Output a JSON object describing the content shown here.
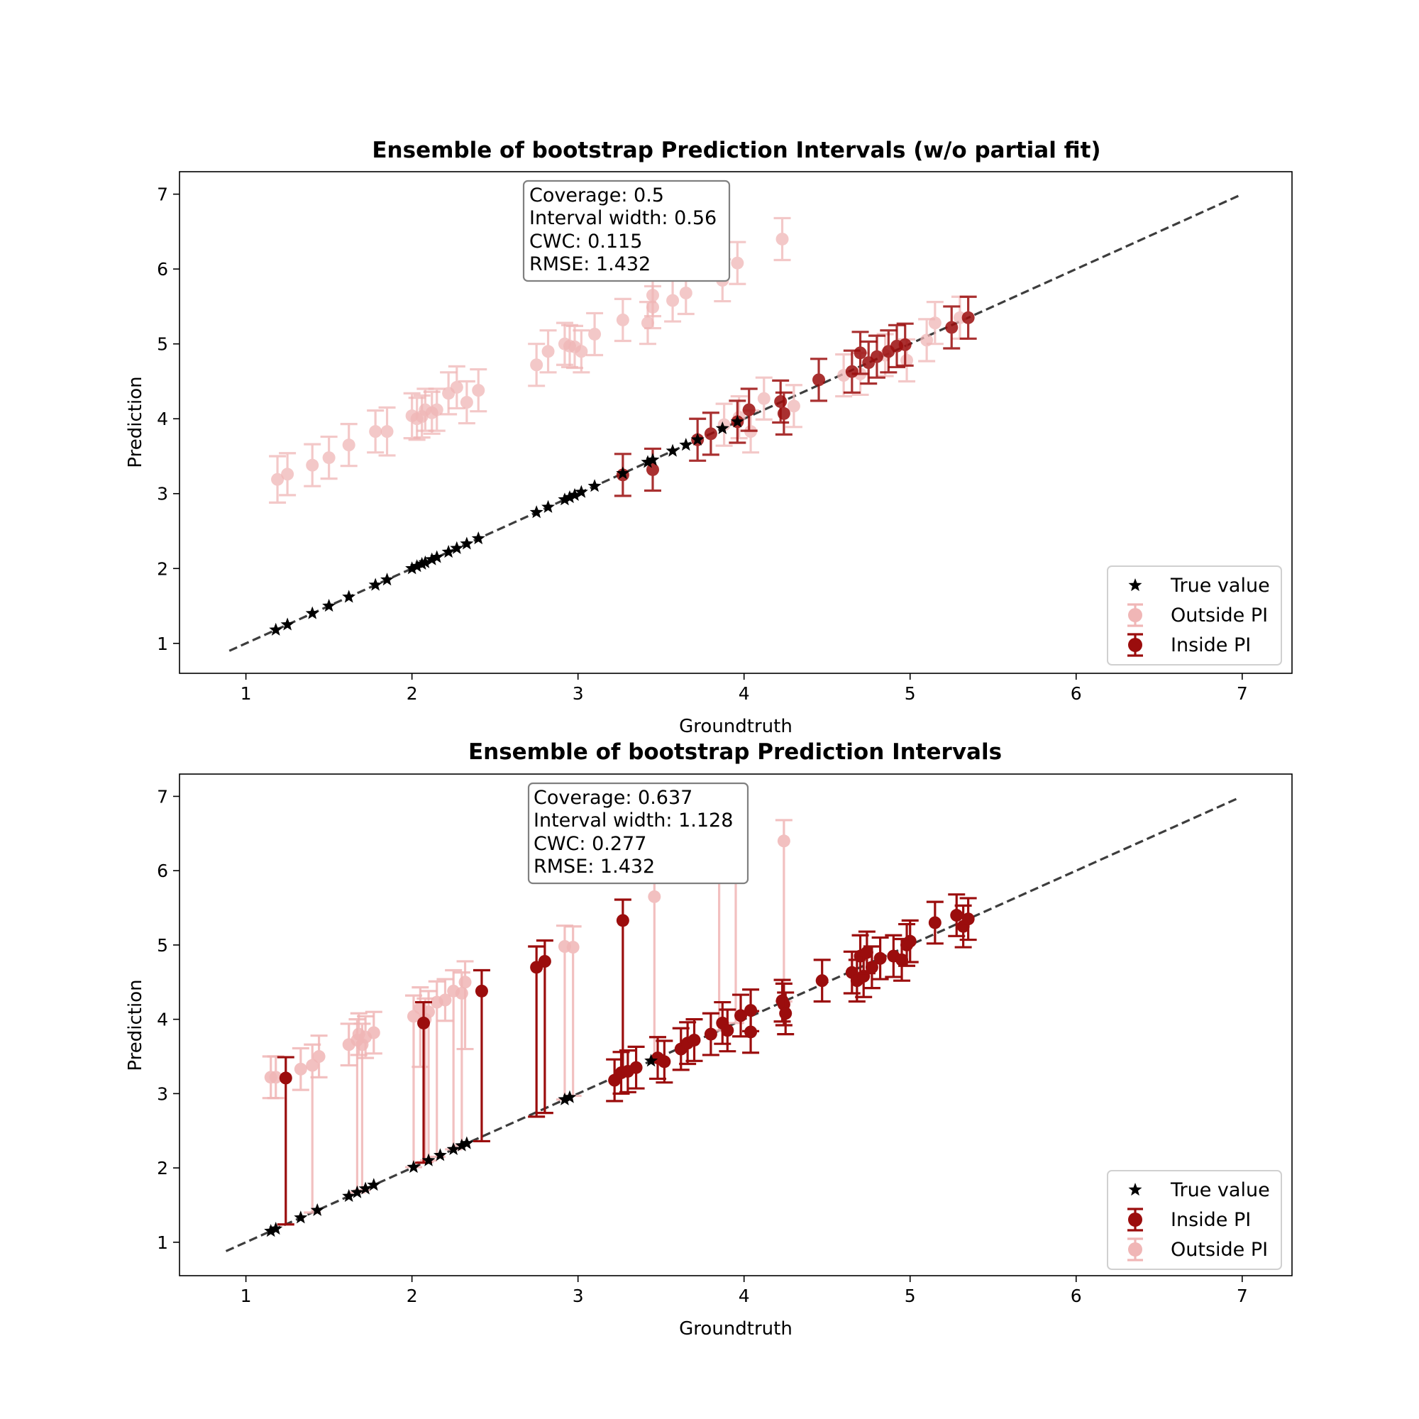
{
  "chart_data": [
    {
      "type": "scatter",
      "title": "Ensemble of bootstrap Prediction Intervals (w/o partial fit)",
      "xlabel": "Groundtruth",
      "ylabel": "Prediction",
      "xlim": [
        0.6,
        7.3
      ],
      "ylim": [
        0.6,
        7.3
      ],
      "xticks": [
        "1",
        "2",
        "3",
        "4",
        "5",
        "6",
        "7"
      ],
      "yticks": [
        "1",
        "2",
        "3",
        "4",
        "5",
        "6",
        "7"
      ],
      "grid": false,
      "legend_position": "bottom-right",
      "legend": [
        "True value",
        "Outside PI",
        "Inside PI"
      ],
      "metrics": [
        "Coverage: 0.5",
        "Interval width: 0.56",
        "CWC: 0.115",
        "RMSE: 1.432"
      ],
      "reference_line": {
        "x": [
          0.9,
          7.0
        ],
        "y": [
          0.9,
          7.0
        ]
      },
      "true_value": {
        "x": [
          1.18,
          1.25,
          1.4,
          1.5,
          1.62,
          1.78,
          1.85,
          2.0,
          2.03,
          2.06,
          2.08,
          2.12,
          2.15,
          2.22,
          2.27,
          2.33,
          2.4,
          2.75,
          2.82,
          2.92,
          2.95,
          2.98,
          3.02,
          3.1,
          3.27,
          3.42,
          3.45,
          3.57,
          3.65,
          3.72,
          3.87,
          3.96
        ],
        "y": [
          1.18,
          1.25,
          1.4,
          1.5,
          1.62,
          1.78,
          1.85,
          2.0,
          2.03,
          2.06,
          2.08,
          2.12,
          2.15,
          2.22,
          2.27,
          2.33,
          2.4,
          2.75,
          2.82,
          2.92,
          2.95,
          2.98,
          3.02,
          3.1,
          3.27,
          3.42,
          3.45,
          3.57,
          3.65,
          3.72,
          3.87,
          3.96
        ]
      },
      "outside_pi": [
        {
          "x": 1.19,
          "y": 3.19,
          "lo": 2.88,
          "hi": 3.5
        },
        {
          "x": 1.25,
          "y": 3.26,
          "lo": 2.98,
          "hi": 3.54
        },
        {
          "x": 1.4,
          "y": 3.38,
          "lo": 3.1,
          "hi": 3.66
        },
        {
          "x": 1.5,
          "y": 3.48,
          "lo": 3.2,
          "hi": 3.76
        },
        {
          "x": 1.62,
          "y": 3.65,
          "lo": 3.37,
          "hi": 3.93
        },
        {
          "x": 1.78,
          "y": 3.83,
          "lo": 3.55,
          "hi": 4.11
        },
        {
          "x": 1.85,
          "y": 3.83,
          "lo": 3.51,
          "hi": 4.15
        },
        {
          "x": 2.0,
          "y": 4.04,
          "lo": 3.74,
          "hi": 4.34
        },
        {
          "x": 2.03,
          "y": 4.0,
          "lo": 3.72,
          "hi": 4.28
        },
        {
          "x": 2.06,
          "y": 4.03,
          "lo": 3.75,
          "hi": 4.31
        },
        {
          "x": 2.08,
          "y": 4.12,
          "lo": 3.84,
          "hi": 4.4
        },
        {
          "x": 2.12,
          "y": 4.08,
          "lo": 3.8,
          "hi": 4.36
        },
        {
          "x": 2.15,
          "y": 4.12,
          "lo": 3.84,
          "hi": 4.4
        },
        {
          "x": 2.22,
          "y": 4.34,
          "lo": 4.06,
          "hi": 4.62
        },
        {
          "x": 2.27,
          "y": 4.42,
          "lo": 4.14,
          "hi": 4.7
        },
        {
          "x": 2.33,
          "y": 4.22,
          "lo": 3.94,
          "hi": 4.5
        },
        {
          "x": 2.4,
          "y": 4.38,
          "lo": 4.1,
          "hi": 4.66
        },
        {
          "x": 2.75,
          "y": 4.72,
          "lo": 4.44,
          "hi": 5.0
        },
        {
          "x": 2.82,
          "y": 4.9,
          "lo": 4.62,
          "hi": 5.18
        },
        {
          "x": 2.92,
          "y": 5.0,
          "lo": 4.72,
          "hi": 5.28
        },
        {
          "x": 2.95,
          "y": 4.97,
          "lo": 4.69,
          "hi": 5.25
        },
        {
          "x": 2.98,
          "y": 4.96,
          "lo": 4.68,
          "hi": 5.24
        },
        {
          "x": 3.02,
          "y": 4.9,
          "lo": 4.62,
          "hi": 5.18
        },
        {
          "x": 3.1,
          "y": 5.13,
          "lo": 4.85,
          "hi": 5.41
        },
        {
          "x": 3.27,
          "y": 5.32,
          "lo": 5.04,
          "hi": 5.6
        },
        {
          "x": 3.42,
          "y": 5.28,
          "lo": 5.0,
          "hi": 5.56
        },
        {
          "x": 3.45,
          "y": 5.49,
          "lo": 5.21,
          "hi": 5.77
        },
        {
          "x": 3.45,
          "y": 5.65,
          "lo": 5.37,
          "hi": 5.93
        },
        {
          "x": 3.57,
          "y": 5.58,
          "lo": 5.3,
          "hi": 5.86
        },
        {
          "x": 3.65,
          "y": 5.68,
          "lo": 5.4,
          "hi": 5.96
        },
        {
          "x": 3.87,
          "y": 5.85,
          "lo": 5.57,
          "hi": 6.13
        },
        {
          "x": 3.96,
          "y": 6.08,
          "lo": 5.8,
          "hi": 6.36
        },
        {
          "x": 4.23,
          "y": 6.4,
          "lo": 6.12,
          "hi": 6.68
        },
        {
          "x": 3.88,
          "y": 3.92,
          "lo": 3.64,
          "hi": 4.2
        },
        {
          "x": 3.97,
          "y": 4.02,
          "lo": 3.74,
          "hi": 4.3
        },
        {
          "x": 4.04,
          "y": 3.83,
          "lo": 3.55,
          "hi": 4.11
        },
        {
          "x": 4.12,
          "y": 4.27,
          "lo": 3.99,
          "hi": 4.55
        },
        {
          "x": 4.3,
          "y": 4.17,
          "lo": 3.89,
          "hi": 4.45
        },
        {
          "x": 4.6,
          "y": 4.58,
          "lo": 4.3,
          "hi": 4.86
        },
        {
          "x": 4.7,
          "y": 4.6,
          "lo": 4.32,
          "hi": 4.88
        },
        {
          "x": 4.85,
          "y": 4.85,
          "lo": 4.57,
          "hi": 5.13
        },
        {
          "x": 4.98,
          "y": 4.78,
          "lo": 4.5,
          "hi": 5.06
        },
        {
          "x": 5.1,
          "y": 5.05,
          "lo": 4.77,
          "hi": 5.33
        },
        {
          "x": 5.15,
          "y": 5.28,
          "lo": 5.0,
          "hi": 5.56
        },
        {
          "x": 5.3,
          "y": 5.35,
          "lo": 5.07,
          "hi": 5.63
        }
      ],
      "inside_pi": [
        {
          "x": 3.27,
          "y": 3.25,
          "lo": 2.97,
          "hi": 3.53
        },
        {
          "x": 3.45,
          "y": 3.32,
          "lo": 3.04,
          "hi": 3.6
        },
        {
          "x": 3.72,
          "y": 3.72,
          "lo": 3.44,
          "hi": 4.0
        },
        {
          "x": 3.8,
          "y": 3.8,
          "lo": 3.52,
          "hi": 4.08
        },
        {
          "x": 3.96,
          "y": 3.96,
          "lo": 3.68,
          "hi": 4.24
        },
        {
          "x": 4.03,
          "y": 4.12,
          "lo": 3.84,
          "hi": 4.4
        },
        {
          "x": 4.22,
          "y": 4.23,
          "lo": 3.95,
          "hi": 4.51
        },
        {
          "x": 4.24,
          "y": 4.07,
          "lo": 3.79,
          "hi": 4.35
        },
        {
          "x": 4.45,
          "y": 4.52,
          "lo": 4.24,
          "hi": 4.8
        },
        {
          "x": 4.65,
          "y": 4.63,
          "lo": 4.35,
          "hi": 4.91
        },
        {
          "x": 4.7,
          "y": 4.88,
          "lo": 4.6,
          "hi": 5.16
        },
        {
          "x": 4.75,
          "y": 4.75,
          "lo": 4.47,
          "hi": 5.03
        },
        {
          "x": 4.8,
          "y": 4.83,
          "lo": 4.55,
          "hi": 5.11
        },
        {
          "x": 4.87,
          "y": 4.9,
          "lo": 4.62,
          "hi": 5.18
        },
        {
          "x": 4.92,
          "y": 4.97,
          "lo": 4.69,
          "hi": 5.25
        },
        {
          "x": 4.97,
          "y": 4.99,
          "lo": 4.71,
          "hi": 5.27
        },
        {
          "x": 5.25,
          "y": 5.22,
          "lo": 4.94,
          "hi": 5.5
        },
        {
          "x": 5.35,
          "y": 5.35,
          "lo": 5.07,
          "hi": 5.63
        }
      ]
    },
    {
      "type": "scatter",
      "title": "Ensemble of bootstrap Prediction Intervals",
      "xlabel": "Groundtruth",
      "ylabel": "Prediction",
      "xlim": [
        0.6,
        7.3
      ],
      "ylim": [
        0.55,
        7.3
      ],
      "xticks": [
        "1",
        "2",
        "3",
        "4",
        "5",
        "6",
        "7"
      ],
      "yticks": [
        "1",
        "2",
        "3",
        "4",
        "5",
        "6",
        "7"
      ],
      "grid": false,
      "legend_position": "bottom-right",
      "legend": [
        "True value",
        "Inside PI",
        "Outside PI"
      ],
      "metrics": [
        "Coverage: 0.637",
        "Interval width: 1.128",
        "CWC: 0.277",
        "RMSE: 1.432"
      ],
      "reference_line": {
        "x": [
          0.88,
          6.97
        ],
        "y": [
          0.88,
          6.97
        ]
      },
      "true_value": {
        "x": [
          1.15,
          1.18,
          1.33,
          1.43,
          1.62,
          1.67,
          1.72,
          1.77,
          2.01,
          2.1,
          2.17,
          2.25,
          2.3,
          2.33,
          2.92,
          2.95,
          3.44
        ],
        "y": [
          1.15,
          1.18,
          1.33,
          1.43,
          1.62,
          1.67,
          1.72,
          1.77,
          2.01,
          2.1,
          2.17,
          2.25,
          2.3,
          2.33,
          2.92,
          2.95,
          3.44
        ]
      },
      "outside_pi": [
        {
          "x": 1.15,
          "y": 3.22,
          "lo": 2.94,
          "hi": 3.5
        },
        {
          "x": 1.18,
          "y": 3.22,
          "lo": 2.94,
          "hi": 3.5
        },
        {
          "x": 1.33,
          "y": 3.33,
          "lo": 3.05,
          "hi": 3.61
        },
        {
          "x": 1.4,
          "y": 3.38,
          "lo": 1.4,
          "hi": 3.66
        },
        {
          "x": 1.44,
          "y": 3.5,
          "lo": 3.22,
          "hi": 3.78
        },
        {
          "x": 1.62,
          "y": 3.66,
          "lo": 3.38,
          "hi": 3.94
        },
        {
          "x": 1.67,
          "y": 3.72,
          "lo": 1.67,
          "hi": 4.0
        },
        {
          "x": 1.68,
          "y": 3.8,
          "lo": 3.52,
          "hi": 4.08
        },
        {
          "x": 1.7,
          "y": 3.66,
          "lo": 1.7,
          "hi": 3.94
        },
        {
          "x": 1.72,
          "y": 3.76,
          "lo": 3.48,
          "hi": 4.04
        },
        {
          "x": 1.77,
          "y": 3.82,
          "lo": 3.54,
          "hi": 4.1
        },
        {
          "x": 2.01,
          "y": 4.04,
          "lo": 2.01,
          "hi": 4.32
        },
        {
          "x": 2.05,
          "y": 4.15,
          "lo": 3.36,
          "hi": 4.43
        },
        {
          "x": 2.08,
          "y": 4.0,
          "lo": 2.08,
          "hi": 4.28
        },
        {
          "x": 2.1,
          "y": 4.1,
          "lo": 2.1,
          "hi": 4.38
        },
        {
          "x": 2.15,
          "y": 4.23,
          "lo": 2.15,
          "hi": 4.51
        },
        {
          "x": 2.2,
          "y": 4.26,
          "lo": 3.98,
          "hi": 4.54
        },
        {
          "x": 2.25,
          "y": 4.38,
          "lo": 2.25,
          "hi": 4.66
        },
        {
          "x": 2.3,
          "y": 4.35,
          "lo": 2.3,
          "hi": 4.63
        },
        {
          "x": 2.32,
          "y": 4.5,
          "lo": 3.6,
          "hi": 4.78
        },
        {
          "x": 2.92,
          "y": 4.98,
          "lo": 2.92,
          "hi": 5.26
        },
        {
          "x": 2.97,
          "y": 4.97,
          "lo": 2.97,
          "hi": 5.25
        },
        {
          "x": 3.46,
          "y": 5.65,
          "lo": 3.46,
          "hi": 5.93
        },
        {
          "x": 3.85,
          "y": 6.2,
          "lo": 3.85,
          "hi": 6.48
        },
        {
          "x": 3.95,
          "y": 6.1,
          "lo": 3.95,
          "hi": 6.38
        },
        {
          "x": 4.24,
          "y": 6.4,
          "lo": 4.24,
          "hi": 6.68
        }
      ],
      "inside_pi": [
        {
          "x": 1.24,
          "y": 3.21,
          "lo": 1.24,
          "hi": 3.49
        },
        {
          "x": 2.07,
          "y": 3.95,
          "lo": 2.07,
          "hi": 4.23
        },
        {
          "x": 2.42,
          "y": 4.38,
          "lo": 2.36,
          "hi": 4.66
        },
        {
          "x": 2.75,
          "y": 4.7,
          "lo": 2.69,
          "hi": 4.98
        },
        {
          "x": 2.8,
          "y": 4.78,
          "lo": 2.74,
          "hi": 5.06
        },
        {
          "x": 3.27,
          "y": 5.33,
          "lo": 3.27,
          "hi": 5.61
        },
        {
          "x": 3.22,
          "y": 3.18,
          "lo": 2.9,
          "hi": 3.46
        },
        {
          "x": 3.26,
          "y": 3.28,
          "lo": 3.0,
          "hi": 3.56
        },
        {
          "x": 3.3,
          "y": 3.3,
          "lo": 3.02,
          "hi": 3.58
        },
        {
          "x": 3.35,
          "y": 3.35,
          "lo": 3.07,
          "hi": 3.63
        },
        {
          "x": 3.48,
          "y": 3.48,
          "lo": 3.2,
          "hi": 3.76
        },
        {
          "x": 3.52,
          "y": 3.43,
          "lo": 3.15,
          "hi": 3.71
        },
        {
          "x": 3.62,
          "y": 3.6,
          "lo": 3.32,
          "hi": 3.88
        },
        {
          "x": 3.66,
          "y": 3.68,
          "lo": 3.4,
          "hi": 3.96
        },
        {
          "x": 3.7,
          "y": 3.72,
          "lo": 3.44,
          "hi": 4.0
        },
        {
          "x": 3.8,
          "y": 3.8,
          "lo": 3.52,
          "hi": 4.08
        },
        {
          "x": 3.87,
          "y": 3.95,
          "lo": 3.67,
          "hi": 4.23
        },
        {
          "x": 3.9,
          "y": 3.85,
          "lo": 3.57,
          "hi": 4.13
        },
        {
          "x": 3.98,
          "y": 4.05,
          "lo": 3.77,
          "hi": 4.33
        },
        {
          "x": 4.04,
          "y": 4.12,
          "lo": 3.84,
          "hi": 4.4
        },
        {
          "x": 4.04,
          "y": 3.83,
          "lo": 3.55,
          "hi": 4.11
        },
        {
          "x": 4.23,
          "y": 4.25,
          "lo": 3.97,
          "hi": 4.53
        },
        {
          "x": 4.24,
          "y": 4.2,
          "lo": 3.92,
          "hi": 4.48
        },
        {
          "x": 4.25,
          "y": 4.08,
          "lo": 3.8,
          "hi": 4.36
        },
        {
          "x": 4.47,
          "y": 4.52,
          "lo": 4.24,
          "hi": 4.8
        },
        {
          "x": 4.65,
          "y": 4.63,
          "lo": 4.35,
          "hi": 4.91
        },
        {
          "x": 4.68,
          "y": 4.52,
          "lo": 4.24,
          "hi": 4.8
        },
        {
          "x": 4.7,
          "y": 4.85,
          "lo": 4.57,
          "hi": 5.13
        },
        {
          "x": 4.72,
          "y": 4.58,
          "lo": 4.3,
          "hi": 4.86
        },
        {
          "x": 4.74,
          "y": 4.9,
          "lo": 4.62,
          "hi": 5.18
        },
        {
          "x": 4.77,
          "y": 4.7,
          "lo": 4.42,
          "hi": 4.98
        },
        {
          "x": 4.82,
          "y": 4.82,
          "lo": 4.54,
          "hi": 5.1
        },
        {
          "x": 4.9,
          "y": 4.85,
          "lo": 4.57,
          "hi": 5.13
        },
        {
          "x": 4.95,
          "y": 4.8,
          "lo": 4.52,
          "hi": 5.08
        },
        {
          "x": 4.98,
          "y": 5.0,
          "lo": 4.72,
          "hi": 5.28
        },
        {
          "x": 5.0,
          "y": 5.05,
          "lo": 4.77,
          "hi": 5.33
        },
        {
          "x": 5.15,
          "y": 5.3,
          "lo": 5.02,
          "hi": 5.58
        },
        {
          "x": 5.28,
          "y": 5.4,
          "lo": 5.12,
          "hi": 5.68
        },
        {
          "x": 5.32,
          "y": 5.25,
          "lo": 4.97,
          "hi": 5.53
        },
        {
          "x": 5.35,
          "y": 5.35,
          "lo": 5.07,
          "hi": 5.63
        }
      ]
    }
  ],
  "colors": {
    "true_value": "#000000",
    "inside_pi": "#9b0d0d",
    "outside_pi": "#f0b6b6",
    "reference_line": "#3d3d3d"
  }
}
